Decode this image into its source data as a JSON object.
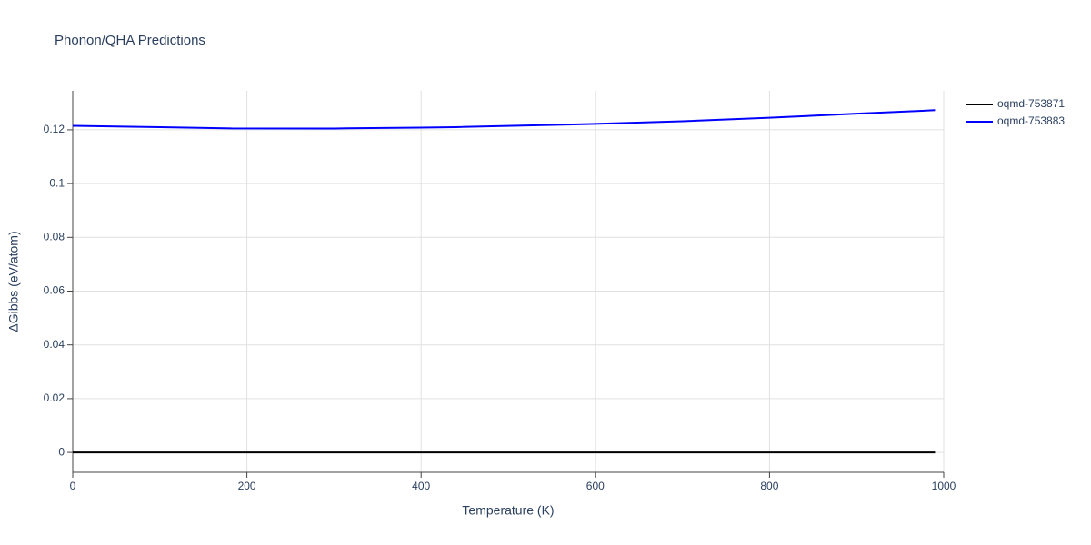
{
  "chart_data": {
    "type": "line",
    "title": "Phonon/QHA Predictions",
    "x_label": "Temperature (K)",
    "y_label": "ΔGibbs (eV/atom)",
    "xlim": [
      0,
      1000
    ],
    "xticks": [
      0,
      200,
      400,
      600,
      800,
      1000
    ],
    "ylim": [
      -0.0074,
      0.1345
    ],
    "yticks": [
      0,
      0.02,
      0.04,
      0.06,
      0.08,
      0.1,
      0.12
    ],
    "grid": true,
    "legend": "top-right",
    "series": [
      {
        "name": "oqmd-753871",
        "color": "#000000",
        "x": [
          0,
          100,
          200,
          300,
          400,
          500,
          600,
          700,
          800,
          900,
          990
        ],
        "values": [
          0,
          0,
          0,
          0,
          0,
          0,
          0,
          0,
          0,
          0,
          0
        ]
      },
      {
        "name": "oqmd-753883",
        "color": "#0000ff",
        "x": [
          0,
          100,
          183,
          300,
          400,
          440,
          600,
          700,
          800,
          900,
          990
        ],
        "values": [
          0.1215,
          0.121,
          0.1205,
          0.1205,
          0.1208,
          0.121,
          0.1222,
          0.1232,
          0.1245,
          0.126,
          0.1273
        ]
      }
    ]
  }
}
